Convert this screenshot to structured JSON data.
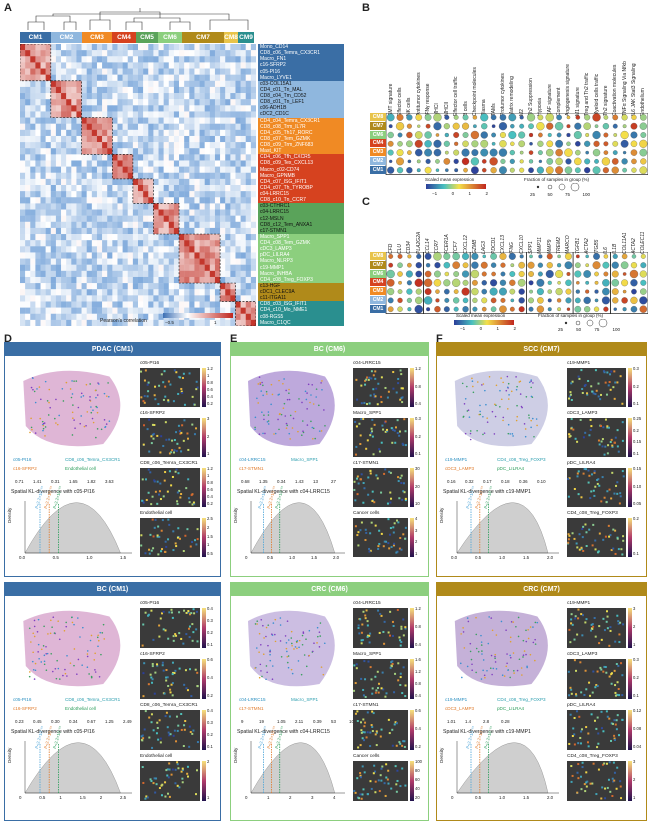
{
  "panels": {
    "A": "A",
    "B": "B",
    "C": "C",
    "D": "D",
    "E": "E",
    "F": "F"
  },
  "colors": {
    "CM1": "#3a6ea5",
    "CM2": "#8fb7de",
    "CM3": "#f08a24",
    "CM4": "#d6421f",
    "CM5": "#5aa35a",
    "CM6": "#8ccf7e",
    "CM7": "#b08a1a",
    "CM8": "#e8c44a",
    "CM9": "#2a8f8f"
  },
  "cm_labels": [
    "CM1",
    "CM2",
    "CM3",
    "CM4",
    "CM5",
    "CM6",
    "CM7",
    "CM8",
    "CM9"
  ],
  "cm_widths": [
    31,
    31,
    30,
    24,
    22,
    24,
    42,
    14,
    16
  ],
  "row_labels": [
    "Mono_CD14",
    "CD8_c06_Temra_CX3CR1",
    "Macro_FN1",
    "c16-SFRP2",
    "c05-PI16",
    "Macro_LYVE1",
    "c03-COL15A1",
    "CD4_c01_Tn_MAL",
    "CD8_c04_Tm_CD52",
    "CD8_c01_Tn_LEF1",
    "c06-ADH1B",
    "cDC2_CD1C",
    "CD4_c04_Temra_CX3CR1",
    "CD8_c08_Trm_IL7R",
    "CD4_c05_Th17_RORC",
    "CD8_c07_Tem_GZMK",
    "CD8_c09_Trm_ZNF683",
    "Mast_KIT",
    "CD4_c06_Tfh_CXCR5",
    "CD8_c09_Tex_CXCL13",
    "Macro_c02-CD74",
    "Macro_GPNMB",
    "CD4_c07_ISG_IFIT1",
    "CD4_c07_Th_TYROBP",
    "c04-LRRC15",
    "CD8_c10_Tn_CCR7",
    "c03-CTHRC1",
    "c04-LRRC15",
    "c12-MSLN",
    "CD8_c12_Tem_ANXA1",
    "c17-STMN1",
    "Macro_SPP1",
    "CD4_c08_Tem_GZMK",
    "cDC3_LAMP3",
    "pDC_LILRA4",
    "Macro_NLRP3",
    "c19-MMP1",
    "Macro_INHBA",
    "CD4_c08_Treg_FOXP3",
    "c13-HGF",
    "cDC1_CLEC9A",
    "c11-ITGA11",
    "CD8_c03_ISG_IFIT1",
    "CD4_c10_Mo_NME1",
    "c08-RGS5",
    "Macro_C1QC"
  ],
  "heat_legend": {
    "title": "Pearson's correlation",
    "ticks": [
      "−0.5",
      "1"
    ]
  },
  "B": {
    "columns": [
      "EMT signature",
      "Effector cells",
      "NK cells",
      "Antitumor cytokines",
      "IFNγ response",
      "MHCI",
      "MHCII",
      "Effector cell traffic",
      "B cells",
      "Checkpoint molecules",
      "Plasma",
      "TAMs",
      "Protumor cytokines",
      "Matrix remodeling",
      "M2",
      "Th2 Suppression",
      "Hypoxia",
      "CAF signature",
      "Complement",
      "Angiogenesis signature",
      "M1 signature",
      "Treg and Th2 traffic",
      "Myeloid cells traffic",
      "Th2 signature",
      "Coactivation molecules",
      "TNFα Signaling Via Nfkb",
      "IL6 JAK Stat3 Signaling",
      "Endothelium"
    ],
    "rows": [
      "CM8",
      "CM7",
      "CM6",
      "CM4",
      "CM3",
      "CM2",
      "CM1"
    ],
    "legend_title": "Scaled mean expression",
    "legend_ticks": [
      "−1",
      "0",
      "1",
      "2"
    ],
    "size_title": "Fraction of samples in group (%)",
    "size_ticks": [
      "25",
      "50",
      "75",
      "100"
    ]
  },
  "C": {
    "columns": [
      "CFD",
      "CLU",
      "CD34",
      "PLA2G2A",
      "CCL14",
      "CCR7",
      "FCER1A",
      "TCF7",
      "CXCL12",
      "GZMB",
      "LAG3",
      "PDCD1",
      "CXCL13",
      "IFNG",
      "CXCL10",
      "SPP1",
      "MMP11",
      "MMP9",
      "TREM2",
      "MARCO",
      "TGFB1",
      "ACTA2",
      "ITGB5",
      "IL6",
      "IL1B",
      "COL11A1",
      "ACTA2",
      "COLEC11"
    ],
    "rows": [
      "CM8",
      "CM7",
      "CM6",
      "CM4",
      "CM3",
      "CM2",
      "CM1"
    ],
    "legend_title": "Scaled mean expression",
    "legend_ticks": [
      "−1",
      "0",
      "1",
      "2"
    ],
    "size_title": "Fraction of samples in group (%)",
    "size_ticks": [
      "25",
      "50",
      "75",
      "100"
    ]
  },
  "D": {
    "top": {
      "title": "PDAC (CM1)",
      "minis": [
        "c05-PI16",
        "c16-SFRP2",
        "CD8_c06_Temra_CX3CR1",
        "Endothelial cell"
      ],
      "scales": [
        [
          "1.2",
          "1",
          "0.8",
          "0.6",
          "0.4",
          "0.2"
        ],
        [
          "3",
          "2",
          "1"
        ],
        [
          "1.2",
          "1",
          "0.8",
          "0.6",
          "0.4",
          "0.2"
        ],
        [
          "2.5",
          "2",
          "1.5",
          "1",
          "0.5"
        ]
      ],
      "legend": [
        "c05-PI16",
        "CD8_c06_Temra_CX3CR1",
        "c16-SFRP2",
        "Endothelial cell"
      ],
      "ranges": [
        "0.71",
        "1.41",
        "0.31",
        "1.65",
        "1.82",
        "3.63"
      ],
      "kl_title": "Spatial KL-divergence with c05-PI16",
      "density": "Density",
      "xticks": [
        "0.0",
        "0.5",
        "1.0",
        "1.5"
      ],
      "pvals": [
        "P<2.2×10⁻¹⁶",
        "P<2.2×10⁻¹⁶",
        "P<2.2×10⁻¹⁶"
      ]
    },
    "bottom": {
      "title": "BC (CM1)",
      "minis": [
        "c05-PI16",
        "c16-SFRP2",
        "CD8_c06_Temra_CX3CR1",
        "Endothelial cell"
      ],
      "scales": [
        [
          "0.4",
          "0.3",
          "0.2",
          "0.1"
        ],
        [
          "0.6",
          "0.4",
          "0.2"
        ],
        [
          "0.4",
          "0.3",
          "0.2",
          "0.1"
        ],
        [
          "2",
          "1"
        ]
      ],
      "legend": [
        "c05-PI16",
        "CD8_c06_Temra_CX3CR1",
        "c16-SFRP2",
        "Endothelial cell"
      ],
      "ranges": [
        "0.23",
        "0.45",
        "0.30",
        "0.34",
        "0.67",
        "1.25",
        "2.49"
      ],
      "kl_title": "Spatial KL-divergence with c05-PI16",
      "density": "Density",
      "xticks": [
        "0",
        "0.5",
        "1",
        "1.5",
        "2",
        "2.5"
      ],
      "pvals": [
        "P<2.2×10⁻¹⁶",
        "P<2.2×10⁻¹⁶",
        "P<2.2×10⁻¹⁶"
      ]
    }
  },
  "E": {
    "top": {
      "title": "BC (CM6)",
      "minis": [
        "c04-LRRC15",
        "Macro_SPP1",
        "c17-STMN1",
        "Cancer cells"
      ],
      "scales": [
        [
          "1.2",
          "0.8",
          "0.4"
        ],
        [
          "0.3",
          "0.2",
          "0.1"
        ],
        [
          "30",
          "20",
          "10"
        ],
        [
          "4",
          "3",
          "2",
          "1"
        ]
      ],
      "legend": [
        "c04-LRRC15",
        "Macro_SPP1",
        "c17-STMN1"
      ],
      "ranges": [
        "0.68",
        "1.35",
        "0.34",
        "1.43",
        "13",
        "27"
      ],
      "kl_title": "Spatial KL-divergence with c04-LRRC15",
      "density": "Density",
      "xticks": [
        "0",
        "0.5",
        "1.0",
        "1.5",
        "2.0"
      ],
      "pvals": [
        "P<2.2×10⁻¹⁶",
        "P<2.2×10⁻¹⁶",
        "P<2.2×10⁻¹⁶"
      ]
    },
    "bottom": {
      "title": "CRC (CM6)",
      "minis": [
        "c04-LRRC15",
        "Macro_SPP1",
        "c17-STMN1",
        "Cancer cells"
      ],
      "scales": [
        [
          "1.2",
          "0.8",
          "0.4"
        ],
        [
          "1.6",
          "1.2",
          "0.8",
          "0.4"
        ],
        [
          "0.6",
          "0.4",
          "0.2"
        ],
        [
          "100",
          "80",
          "60",
          "40",
          "20"
        ]
      ],
      "legend": [
        "c04-LRRC15",
        "Macro_SPP1",
        "c17-STMN1"
      ],
      "ranges": [
        "9",
        "19",
        "1.05",
        "2.11",
        "0.39",
        "53",
        "107"
      ],
      "kl_title": "Spatial KL-divergence with c04-LRRC15",
      "density": "Density",
      "xticks": [
        "0",
        "1",
        "2",
        "3",
        "4"
      ],
      "pvals": [
        "P<2.2×10⁻¹⁶",
        "P<2.2×10⁻¹⁶",
        "P<2.2×10⁻¹⁶"
      ]
    }
  },
  "F": {
    "top": {
      "title": "SCC (CM7)",
      "minis": [
        "c19-MMP1",
        "cDC3_LAMP3",
        "pDC_LILRA4",
        "CD4_c08_Treg_FOXP3"
      ],
      "scales": [
        [
          "0.3",
          "0.2",
          "0.1"
        ],
        [
          "0.25",
          "0.2",
          "0.15",
          "0.1"
        ],
        [
          "0.15",
          "0.10",
          "0.05"
        ],
        [
          "0.2",
          "0.1"
        ]
      ],
      "legend": [
        "c19-MMP1",
        "CD4_c08_Treg_FOXP3",
        "cDC3_LAMP3",
        "pDC_LILRA4"
      ],
      "ranges": [
        "0.16",
        "0.32",
        "0.17",
        "0.18",
        "0.36",
        "0.10"
      ],
      "kl_title": "Spatial KL-divergence with c19-MMP1",
      "density": "Density",
      "xticks": [
        "0.0",
        "0.5",
        "1.0",
        "1.5",
        "2.0"
      ],
      "pvals": [
        "P<2.2×10⁻¹⁶",
        "P<2.2×10⁻¹⁶",
        "P<2.2×10⁻¹⁶"
      ]
    },
    "bottom": {
      "title": "CRC (CM7)",
      "minis": [
        "c19-MMP1",
        "cDC3_LAMP3",
        "pDC_LILRA4",
        "CD4_c08_Treg_FOXP3"
      ],
      "scales": [
        [
          "3",
          "2",
          "1"
        ],
        [
          "0.3",
          "0.2",
          "0.1"
        ],
        [
          "0.12",
          "0.08",
          "0.04"
        ],
        [
          "3",
          "2",
          "1"
        ]
      ],
      "legend": [
        "c19-MMP1",
        "CD4_c08_Treg_FOXP3",
        "cDC3_LAMP3",
        "pDC_LILRA4"
      ],
      "ranges": [
        "1.01",
        "1.4",
        "2.8",
        "0.28"
      ],
      "kl_title": "Spatial KL-divergence with c19-MMP1",
      "density": "Density",
      "xticks": [
        "0",
        "0.5",
        "1.0",
        "1.5",
        "2.0"
      ],
      "pvals": [
        "P<2.2×10⁻¹⁶",
        "P<2.2×10⁻¹⁶",
        "P<2.2×10⁻¹⁶"
      ]
    }
  }
}
